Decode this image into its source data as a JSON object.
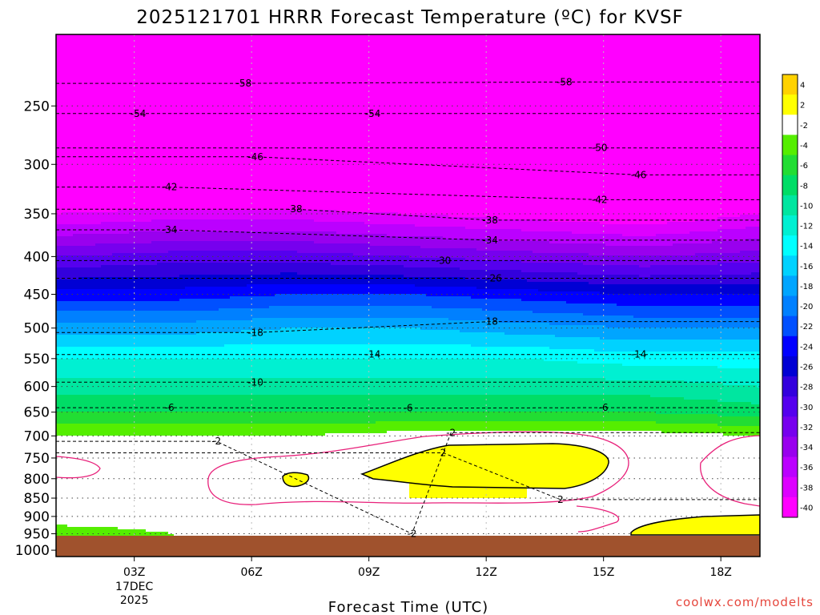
{
  "chart_data": {
    "type": "heatmap",
    "title": "2025121701 HRRR Forecast Temperature (ºC) for KVSF",
    "xlabel": "Forecast Time (UTC)",
    "ylabel": "",
    "x_ticks": [
      {
        "hour": 3,
        "label": "03Z",
        "sub": [
          "17DEC",
          "2025"
        ]
      },
      {
        "hour": 6,
        "label": "06Z"
      },
      {
        "hour": 9,
        "label": "09Z"
      },
      {
        "hour": 12,
        "label": "12Z"
      },
      {
        "hour": 15,
        "label": "15Z"
      },
      {
        "hour": 18,
        "label": "18Z"
      }
    ],
    "xlim": [
      1,
      19
    ],
    "y_scale": "log",
    "y_axis": "pressure (hPa), inverted",
    "ylim": [
      1020,
      200
    ],
    "y_ticks": [
      250,
      300,
      350,
      400,
      450,
      500,
      550,
      600,
      650,
      700,
      750,
      800,
      850,
      900,
      950,
      1000
    ],
    "colorbar": {
      "ticks": [
        4,
        2,
        -2,
        -4,
        -6,
        -8,
        -10,
        -12,
        -14,
        -16,
        -18,
        -20,
        -22,
        -24,
        -26,
        -28,
        -30,
        -32,
        -34,
        -36,
        -38,
        -40
      ],
      "colors": [
        "#ffd200",
        "#ffff00",
        "#ffffff",
        "#55ee00",
        "#22dd33",
        "#00dd66",
        "#00e6a0",
        "#00f0d2",
        "#00ffff",
        "#00d2ff",
        "#00a5ff",
        "#0080ff",
        "#0050ff",
        "#0000ff",
        "#0000d4",
        "#3300dd",
        "#5500ee",
        "#7700ee",
        "#9900ee",
        "#bb00ff",
        "#dd00ff",
        "#ff00ff"
      ]
    },
    "temperature_profiles": {
      "hours": [
        1,
        4,
        7,
        10,
        13,
        16,
        19
      ],
      "levels": [
        200,
        250,
        300,
        350,
        400,
        450,
        500,
        550,
        600,
        650,
        700,
        750,
        800,
        850,
        900,
        950,
        980,
        1000
      ],
      "temps": [
        [
          -60,
          -56,
          -47,
          -38,
          -30,
          -23,
          -17,
          -12,
          -9,
          -6,
          -2,
          0,
          1,
          0,
          -1,
          -3,
          -3,
          -3
        ],
        [
          -60,
          -55,
          -46,
          -37,
          -29,
          -23,
          -17,
          -12,
          -9,
          -6,
          -2,
          0,
          1,
          0,
          -1,
          -2,
          -2,
          -2
        ],
        [
          -60,
          -56,
          -47,
          -37,
          -29,
          -22,
          -16,
          -12,
          -9,
          -6,
          -2,
          0,
          1,
          1,
          0,
          -1,
          -2,
          -2
        ],
        [
          -61,
          -56,
          -48,
          -38,
          -30,
          -22,
          -16,
          -12,
          -9,
          -6,
          -1,
          1,
          2,
          2,
          0,
          -1,
          -2,
          -2
        ],
        [
          -60,
          -56,
          -49,
          -39,
          -31,
          -23,
          -17,
          -12,
          -9,
          -6,
          -1,
          1,
          2,
          2,
          0,
          0,
          -1,
          -1
        ],
        [
          -60,
          -55,
          -48,
          -40,
          -32,
          -24,
          -18,
          -13,
          -9,
          -6,
          -1,
          0,
          1,
          1,
          0,
          1,
          1,
          1
        ],
        [
          -60,
          -55,
          -47,
          -38,
          -31,
          -24,
          -18,
          -13,
          -10,
          -7,
          -2,
          0,
          0,
          0,
          0,
          1,
          2,
          2
        ]
      ]
    },
    "contour_labels": [
      {
        "text": "-58",
        "hour": 5.8,
        "p": 233
      },
      {
        "text": "-58",
        "hour": 14.0,
        "p": 232
      },
      {
        "text": "-54",
        "hour": 3.1,
        "p": 256
      },
      {
        "text": "-54",
        "hour": 9.1,
        "p": 256
      },
      {
        "text": "-50",
        "hour": 14.9,
        "p": 285
      },
      {
        "text": "-46",
        "hour": 6.1,
        "p": 293
      },
      {
        "text": "-46",
        "hour": 15.9,
        "p": 310
      },
      {
        "text": "-42",
        "hour": 3.9,
        "p": 322
      },
      {
        "text": "-42",
        "hour": 14.9,
        "p": 335
      },
      {
        "text": "-38",
        "hour": 7.1,
        "p": 345
      },
      {
        "text": "-38",
        "hour": 12.1,
        "p": 357
      },
      {
        "text": "-34",
        "hour": 3.9,
        "p": 368
      },
      {
        "text": "-34",
        "hour": 12.1,
        "p": 380
      },
      {
        "text": "-30",
        "hour": 10.9,
        "p": 405
      },
      {
        "text": "-26",
        "hour": 12.2,
        "p": 428
      },
      {
        "text": "-18",
        "hour": 6.1,
        "p": 507
      },
      {
        "text": "-18",
        "hour": 12.1,
        "p": 490
      },
      {
        "text": "-14",
        "hour": 9.1,
        "p": 543
      },
      {
        "text": "-14",
        "hour": 15.9,
        "p": 543
      },
      {
        "text": "-10",
        "hour": 6.1,
        "p": 592
      },
      {
        "text": "-6",
        "hour": 3.9,
        "p": 641
      },
      {
        "text": "-6",
        "hour": 10.0,
        "p": 642
      },
      {
        "text": "-6",
        "hour": 15.0,
        "p": 641
      },
      {
        "text": "-2",
        "hour": 11.1,
        "p": 693
      },
      {
        "text": "-2",
        "hour": 5.1,
        "p": 712
      },
      {
        "text": "2",
        "hour": 10.9,
        "p": 738
      },
      {
        "text": "2",
        "hour": 13.9,
        "p": 854
      },
      {
        "text": "-2",
        "hour": 10.1,
        "p": 950
      }
    ]
  },
  "credit": "coolwx.com/modelts"
}
